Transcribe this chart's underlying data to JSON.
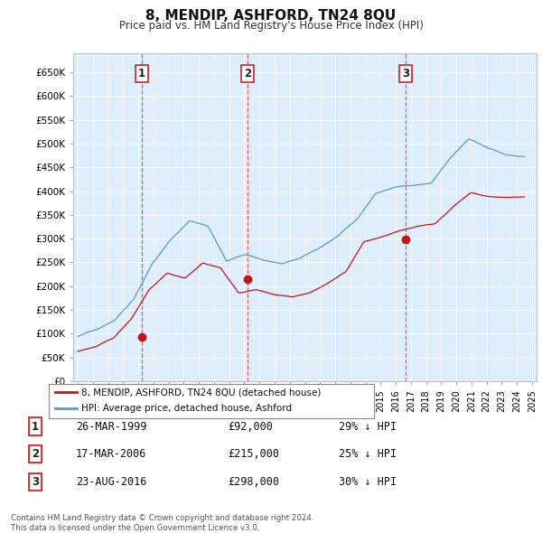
{
  "title": "8, MENDIP, ASHFORD, TN24 8QU",
  "subtitle": "Price paid vs. HM Land Registry's House Price Index (HPI)",
  "background_color": "#ffffff",
  "plot_background": "#ddeeff",
  "grid_color": "#ffffff",
  "hpi_color": "#5599cc",
  "price_color": "#cc1111",
  "dashed_color": "#ee4444",
  "ylim_min": 0,
  "ylim_max": 690000,
  "ytick_vals": [
    0,
    50000,
    100000,
    150000,
    200000,
    250000,
    300000,
    350000,
    400000,
    450000,
    500000,
    550000,
    600000,
    650000
  ],
  "ytick_labels": [
    "£0",
    "£50K",
    "£100K",
    "£150K",
    "£200K",
    "£250K",
    "£300K",
    "£350K",
    "£400K",
    "£450K",
    "£500K",
    "£550K",
    "£600K",
    "£650K"
  ],
  "xlim_min": 1994.7,
  "xlim_max": 2025.3,
  "sale_dates": [
    1999.23,
    2006.21,
    2016.64
  ],
  "sale_prices": [
    92000,
    215000,
    298000
  ],
  "sale_labels": [
    "1",
    "2",
    "3"
  ],
  "legend_entries": [
    "8, MENDIP, ASHFORD, TN24 8QU (detached house)",
    "HPI: Average price, detached house, Ashford"
  ],
  "table_data": [
    [
      "1",
      "26-MAR-1999",
      "£92,000",
      "29% ↓ HPI"
    ],
    [
      "2",
      "17-MAR-2006",
      "£215,000",
      "25% ↓ HPI"
    ],
    [
      "3",
      "23-AUG-2016",
      "£298,000",
      "30% ↓ HPI"
    ]
  ],
  "footnote": "Contains HM Land Registry data © Crown copyright and database right 2024.\nThis data is licensed under the Open Government Licence v3.0."
}
